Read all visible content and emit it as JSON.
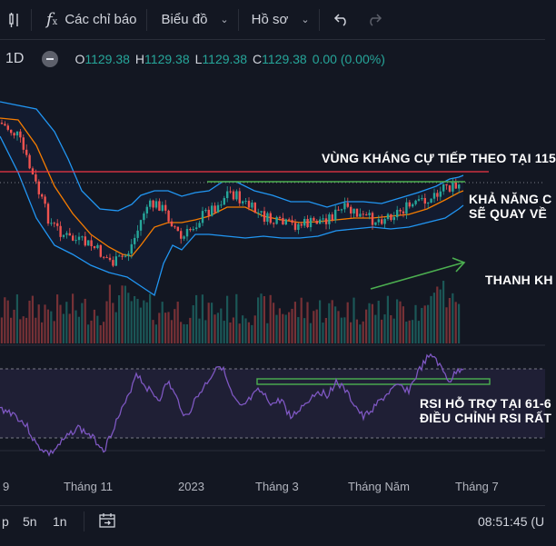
{
  "toolbar": {
    "indicators_label": "Các chỉ báo",
    "chart_label": "Biểu đồ",
    "profile_label": "Hồ sơ"
  },
  "legend": {
    "interval": "1D",
    "o_label": "O",
    "o_value": "1129.38",
    "h_label": "H",
    "h_value": "1129.38",
    "l_label": "L",
    "l_value": "1129.38",
    "c_label": "C",
    "c_value": "1129.38",
    "change": "0.00 (0.00%)"
  },
  "annotations": {
    "resistance": "VÙNG KHÁNG CỰ TIẾP THEO TẠI 115",
    "ability_line1": "KHẢ NĂNG C",
    "ability_line2": "SẼ QUAY VỀ",
    "liquidity": "THANH KH",
    "rsi_line1": "RSI HỖ TRỢ TẠI 61-6",
    "rsi_line2": "ĐIỀU CHỈNH RSI RẤT"
  },
  "time_axis": [
    {
      "label": "9"
    },
    {
      "label": "Tháng 11"
    },
    {
      "label": "2023"
    },
    {
      "label": "Tháng 3"
    },
    {
      "label": "Tháng Năm"
    },
    {
      "label": "Tháng 7"
    }
  ],
  "bottom": {
    "ranges": [
      "p",
      "5n",
      "1n"
    ],
    "time": "08:51:45 (U"
  },
  "colors": {
    "background": "#131722",
    "up": "#26a69a",
    "down": "#ef5350",
    "bollinger": "#2962ff",
    "ma": "#f57c00",
    "resistance": "#f23645",
    "support": "#4caf50",
    "rsi": "#7e57c2"
  },
  "chart_data": {
    "type": "line",
    "series": [],
    "xlabel": "",
    "ylabel": ""
  }
}
